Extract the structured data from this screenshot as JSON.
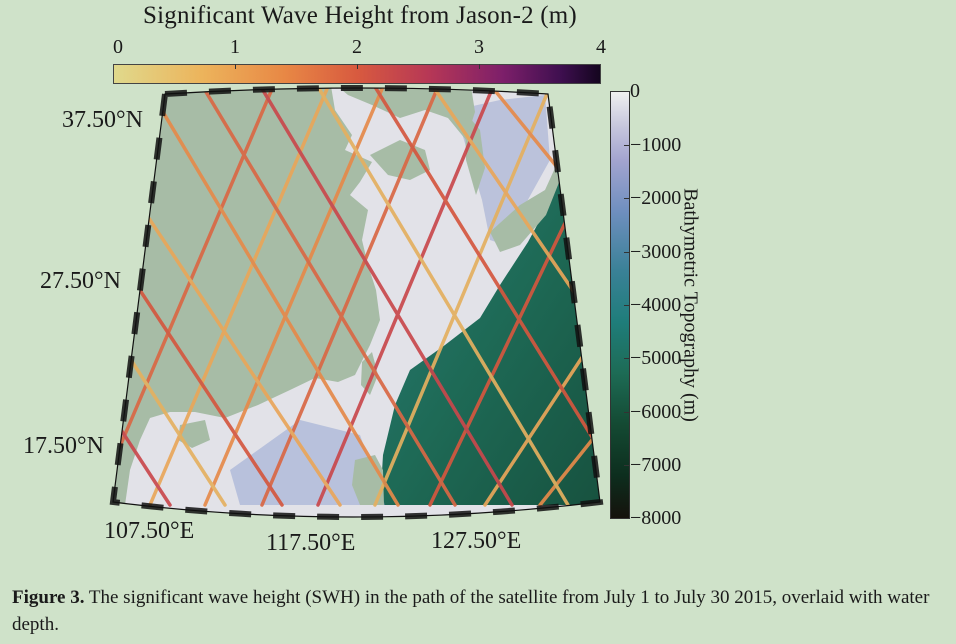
{
  "colorbar_swh": {
    "title": "Significant Wave Height from Jason-2 (m)",
    "ticks": [
      "0",
      "1",
      "2",
      "3",
      "4"
    ]
  },
  "colorbar_bathymetry": {
    "label": "Bathymetric Topography (m)",
    "ticks": [
      "0",
      "−1000",
      "−2000",
      "−3000",
      "−4000",
      "−5000",
      "−6000",
      "−7000",
      "−8000"
    ]
  },
  "map": {
    "lat_labels": [
      "37.50°N",
      "27.50°N",
      "17.50°N"
    ],
    "lon_labels": [
      "107.50°E",
      "117.50°E",
      "127.50°E"
    ]
  },
  "caption": {
    "label": "Figure 3.",
    "text": " The significant wave height (SWH) in the path of the satellite from July 1 to July 30 2015, overlaid with water depth."
  },
  "colors": {
    "page_bg": "#cfe2c9",
    "land": "#a7bca6",
    "shelf": "#e4e4ea",
    "deep_ocean": "#1f6b5f"
  }
}
